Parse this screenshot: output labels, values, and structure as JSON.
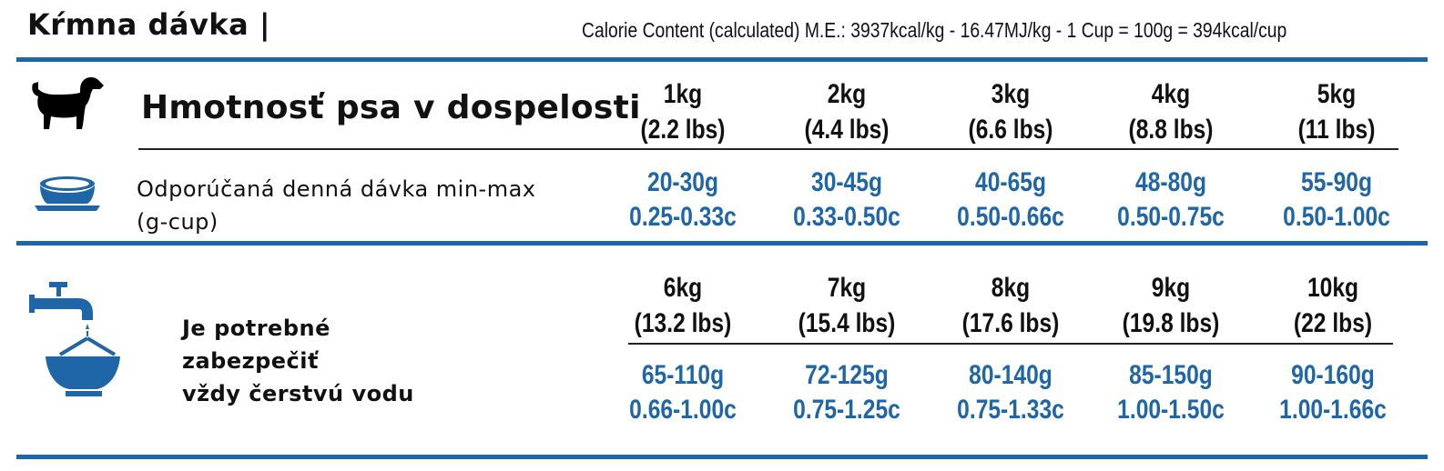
{
  "header": {
    "title": "Kŕmna dávka |",
    "calorie_content": "Calorie Content (calculated) M.E.: 3937kcal/kg - 16.47MJ/kg - 1 Cup = 100g = 394kcal/cup"
  },
  "row1": {
    "heading": "Hmotnosť psa v dospelosti",
    "subtext_line1": "Odporúčaná denná dávka min-max",
    "subtext_line2": "(g-cup)",
    "weights": [
      {
        "kg": "1kg",
        "lbs": "(2.2 lbs)",
        "grams": "20-30g",
        "cups": "0.25-0.33c"
      },
      {
        "kg": "2kg",
        "lbs": "(4.4 lbs)",
        "grams": "30-45g",
        "cups": "0.33-0.50c"
      },
      {
        "kg": "3kg",
        "lbs": "(6.6 lbs)",
        "grams": "40-65g",
        "cups": "0.50-0.66c"
      },
      {
        "kg": "4kg",
        "lbs": "(8.8 lbs)",
        "grams": "48-80g",
        "cups": "0.50-0.75c"
      },
      {
        "kg": "5kg",
        "lbs": "(11 lbs)",
        "grams": "55-90g",
        "cups": "0.50-1.00c"
      }
    ]
  },
  "row2": {
    "water_line1": "Je potrebné",
    "water_line2": "zabezpečiť",
    "water_line3": "vždy čerstvú vodu",
    "weights": [
      {
        "kg": "6kg",
        "lbs": "(13.2 lbs)",
        "grams": "65-110g",
        "cups": "0.66-1.00c"
      },
      {
        "kg": "7kg",
        "lbs": "(15.4 lbs)",
        "grams": "72-125g",
        "cups": "0.75-1.25c"
      },
      {
        "kg": "8kg",
        "lbs": "(17.6 lbs)",
        "grams": "80-140g",
        "cups": "0.75-1.33c"
      },
      {
        "kg": "9kg",
        "lbs": "(19.8 lbs)",
        "grams": "85-150g",
        "cups": "1.00-1.50c"
      },
      {
        "kg": "10kg",
        "lbs": "(22 lbs)",
        "grams": "90-160g",
        "cups": "1.00-1.66c"
      }
    ]
  },
  "icons": {
    "dog": "dog-icon",
    "bowl": "food-bowl-icon",
    "tap": "water-tap-icon"
  },
  "colors": {
    "accent": "#1f66a8",
    "text": "#111111"
  }
}
